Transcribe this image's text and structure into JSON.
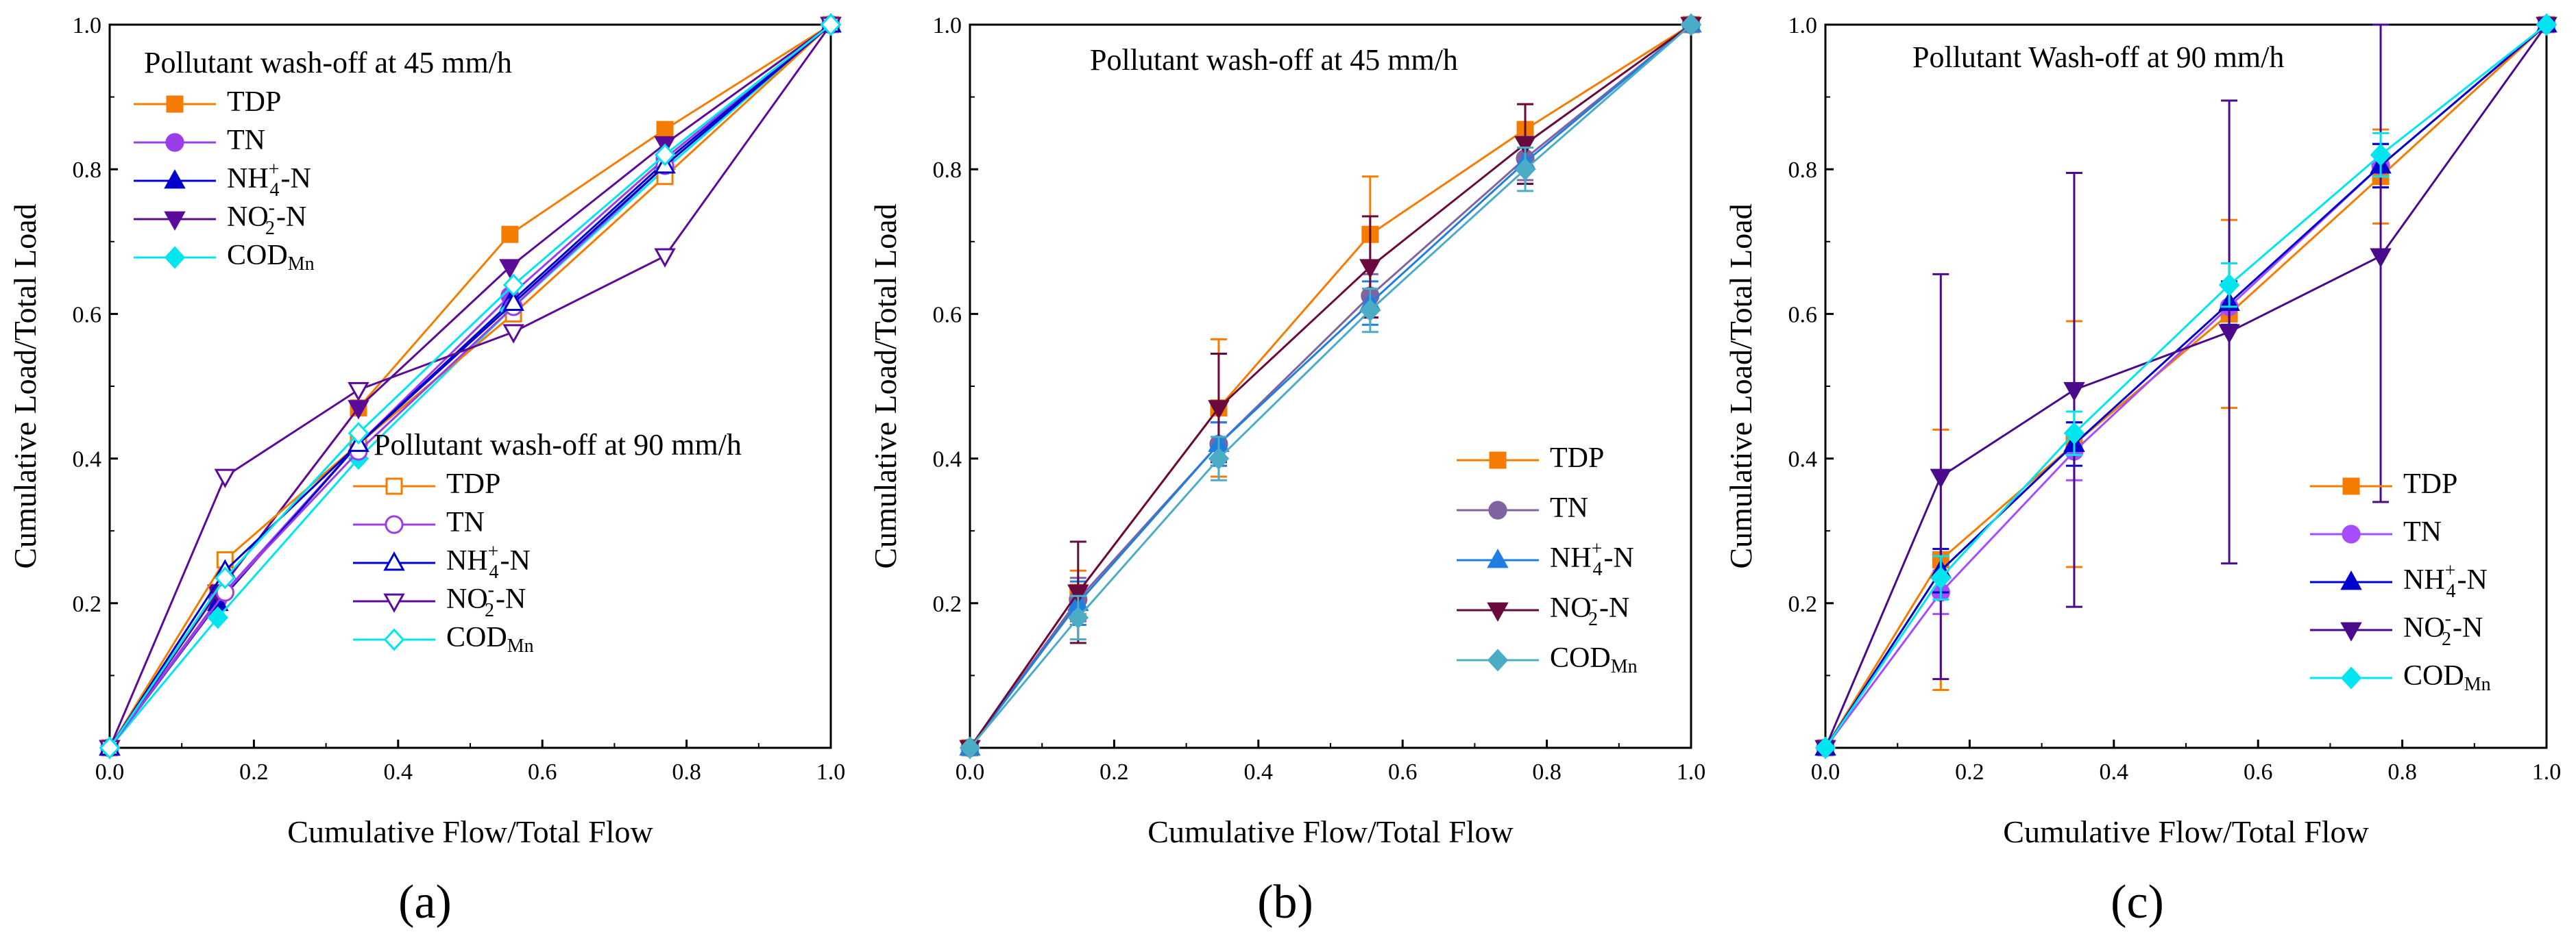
{
  "figure": {
    "panel_labels": [
      "(a)",
      "(b)",
      "(c)"
    ]
  },
  "chart_data": [
    {
      "type": "line",
      "panel": "a",
      "xlabel": "Cumulative Flow/Total Flow",
      "ylabel": "Cumulative Load/Total Load",
      "xlim": [
        0,
        1
      ],
      "ylim": [
        0,
        1
      ],
      "xticks": [
        "0.0",
        "0.2",
        "0.4",
        "0.6",
        "0.8",
        "1.0"
      ],
      "yticks": [
        "0.2",
        "0.4",
        "0.6",
        "0.8",
        "1.0"
      ],
      "legends": [
        {
          "title": "Pollutant wash-off at 45 mm/h",
          "entries": [
            {
              "label": "TDP",
              "sub": "",
              "sup": "",
              "suffix": "",
              "marker": "square",
              "filled": true,
              "color": "#f57c00"
            },
            {
              "label": "TN",
              "sub": "",
              "sup": "",
              "suffix": "",
              "marker": "circle",
              "filled": true,
              "color": "#9b3de8"
            },
            {
              "label": "NH",
              "sub": "4",
              "sup": "+",
              "suffix": "-N",
              "marker": "triangle",
              "filled": true,
              "color": "#0000cc"
            },
            {
              "label": "NO",
              "sub": "2",
              "sup": "-",
              "suffix": "-N",
              "marker": "triangle-down",
              "filled": true,
              "color": "#5c0a99"
            },
            {
              "label": "COD",
              "sub": "Mn",
              "sup": "",
              "suffix": "",
              "marker": "diamond",
              "filled": true,
              "color": "#00e5ee"
            }
          ]
        },
        {
          "title": "Pollutant wash-off at 90 mm/h",
          "entries": [
            {
              "label": "TDP",
              "sub": "",
              "sup": "",
              "suffix": "",
              "marker": "square",
              "filled": false,
              "color": "#f57c00"
            },
            {
              "label": "TN",
              "sub": "",
              "sup": "",
              "suffix": "",
              "marker": "circle",
              "filled": false,
              "color": "#9b3de8"
            },
            {
              "label": "NH",
              "sub": "4",
              "sup": "+",
              "suffix": "-N",
              "marker": "triangle",
              "filled": false,
              "color": "#0000cc"
            },
            {
              "label": "NO",
              "sub": "2",
              "sup": "-",
              "suffix": "-N",
              "marker": "triangle-down",
              "filled": false,
              "color": "#5c0a99"
            },
            {
              "label": "COD",
              "sub": "Mn",
              "sup": "",
              "suffix": "",
              "marker": "diamond",
              "filled": false,
              "color": "#00e5ee"
            }
          ]
        }
      ],
      "series": [
        {
          "name": "TDP 45 mm/h",
          "marker": "square",
          "filled": true,
          "color": "#f57c00",
          "x": [
            0,
            0.15,
            0.345,
            0.555,
            0.77,
            1.0
          ],
          "y": [
            0,
            0.215,
            0.47,
            0.71,
            0.855,
            1.0
          ]
        },
        {
          "name": "TN 45 mm/h",
          "marker": "circle",
          "filled": true,
          "color": "#9b3de8",
          "x": [
            0,
            0.15,
            0.345,
            0.555,
            0.77,
            1.0
          ],
          "y": [
            0,
            0.205,
            0.42,
            0.625,
            0.815,
            1.0
          ]
        },
        {
          "name": "NH4+-N 45 mm/h",
          "marker": "triangle",
          "filled": true,
          "color": "#0000cc",
          "x": [
            0,
            0.15,
            0.345,
            0.555,
            0.77,
            1.0
          ],
          "y": [
            0,
            0.2,
            0.42,
            0.615,
            0.81,
            1.0
          ]
        },
        {
          "name": "NO2--N 45 mm/h",
          "marker": "triangle-down",
          "filled": true,
          "color": "#5c0a99",
          "x": [
            0,
            0.15,
            0.345,
            0.555,
            0.77,
            1.0
          ],
          "y": [
            0,
            0.215,
            0.47,
            0.665,
            0.835,
            1.0
          ]
        },
        {
          "name": "CODMn 45 mm/h",
          "marker": "diamond",
          "filled": true,
          "color": "#00e5ee",
          "x": [
            0,
            0.15,
            0.345,
            0.555,
            0.77,
            1.0
          ],
          "y": [
            0,
            0.18,
            0.4,
            0.605,
            0.8,
            1.0
          ]
        },
        {
          "name": "TDP 90 mm/h",
          "marker": "square",
          "filled": false,
          "color": "#f57c00",
          "x": [
            0,
            0.16,
            0.345,
            0.56,
            0.77,
            1.0
          ],
          "y": [
            0,
            0.26,
            0.42,
            0.6,
            0.79,
            1.0
          ]
        },
        {
          "name": "TN 90 mm/h",
          "marker": "circle",
          "filled": false,
          "color": "#9b3de8",
          "x": [
            0,
            0.16,
            0.345,
            0.56,
            0.77,
            1.0
          ],
          "y": [
            0,
            0.215,
            0.41,
            0.61,
            0.805,
            1.0
          ]
        },
        {
          "name": "NH4+-N 90 mm/h",
          "marker": "triangle",
          "filled": false,
          "color": "#0000cc",
          "x": [
            0,
            0.16,
            0.345,
            0.56,
            0.77,
            1.0
          ],
          "y": [
            0,
            0.245,
            0.42,
            0.615,
            0.805,
            1.0
          ]
        },
        {
          "name": "NO2--N 90 mm/h",
          "marker": "triangle-down",
          "filled": false,
          "color": "#5c0a99",
          "x": [
            0,
            0.16,
            0.345,
            0.56,
            0.77,
            1.0
          ],
          "y": [
            0,
            0.375,
            0.495,
            0.575,
            0.68,
            1.0
          ]
        },
        {
          "name": "CODMn 90 mm/h",
          "marker": "diamond",
          "filled": false,
          "color": "#00e5ee",
          "x": [
            0,
            0.16,
            0.345,
            0.56,
            0.77,
            1.0
          ],
          "y": [
            0,
            0.235,
            0.435,
            0.64,
            0.82,
            1.0
          ]
        }
      ]
    },
    {
      "type": "line",
      "panel": "b",
      "xlabel": "Cumulative Flow/Total Flow",
      "ylabel": "Cumulative Load/Total Load",
      "xlim": [
        0,
        1
      ],
      "ylim": [
        0,
        1
      ],
      "xticks": [
        "0.0",
        "0.2",
        "0.4",
        "0.6",
        "0.8",
        "1.0"
      ],
      "yticks": [
        "0.2",
        "0.4",
        "0.6",
        "0.8",
        "1.0"
      ],
      "legends": [
        {
          "title": "Pollutant wash-off at 45 mm/h",
          "entries": [
            {
              "label": "TDP",
              "sub": "",
              "sup": "",
              "suffix": "",
              "marker": "square",
              "filled": true,
              "color": "#f57c00"
            },
            {
              "label": "TN",
              "sub": "",
              "sup": "",
              "suffix": "",
              "marker": "circle",
              "filled": true,
              "color": "#8064a2"
            },
            {
              "label": "NH",
              "sub": "4",
              "sup": "+",
              "suffix": "-N",
              "marker": "triangle",
              "filled": true,
              "color": "#1e7fe0"
            },
            {
              "label": "NO",
              "sub": "2",
              "sup": "-",
              "suffix": "-N",
              "marker": "triangle-down",
              "filled": true,
              "color": "#6a0a3c"
            },
            {
              "label": "COD",
              "sub": "Mn",
              "sup": "",
              "suffix": "",
              "marker": "diamond",
              "filled": true,
              "color": "#4bacc6"
            }
          ]
        }
      ],
      "series": [
        {
          "name": "TDP",
          "marker": "square",
          "filled": true,
          "color": "#f57c00",
          "x": [
            0,
            0.15,
            0.345,
            0.555,
            0.77,
            1.0
          ],
          "y": [
            0,
            0.215,
            0.47,
            0.71,
            0.855,
            1.0
          ],
          "err": [
            0,
            0.03,
            0.095,
            0.08,
            0.035,
            0
          ]
        },
        {
          "name": "TN",
          "marker": "circle",
          "filled": true,
          "color": "#8064a2",
          "x": [
            0,
            0.15,
            0.345,
            0.555,
            0.77,
            1.0
          ],
          "y": [
            0,
            0.205,
            0.42,
            0.625,
            0.815,
            1.0
          ],
          "err": [
            0,
            0.03,
            0.03,
            0.03,
            0.03,
            0
          ]
        },
        {
          "name": "NH4+-N",
          "marker": "triangle",
          "filled": true,
          "color": "#1e7fe0",
          "x": [
            0,
            0.15,
            0.345,
            0.555,
            0.77,
            1.0
          ],
          "y": [
            0,
            0.2,
            0.42,
            0.615,
            0.81,
            1.0
          ],
          "err": [
            0,
            0.03,
            0.03,
            0.03,
            0.03,
            0
          ]
        },
        {
          "name": "NO2--N",
          "marker": "triangle-down",
          "filled": true,
          "color": "#6a0a3c",
          "x": [
            0,
            0.15,
            0.345,
            0.555,
            0.77,
            1.0
          ],
          "y": [
            0,
            0.215,
            0.47,
            0.665,
            0.835,
            1.0
          ],
          "err": [
            0,
            0.07,
            0.075,
            0.07,
            0.055,
            0
          ]
        },
        {
          "name": "CODMn",
          "marker": "diamond",
          "filled": true,
          "color": "#4bacc6",
          "x": [
            0,
            0.15,
            0.345,
            0.555,
            0.77,
            1.0
          ],
          "y": [
            0,
            0.18,
            0.4,
            0.605,
            0.8,
            1.0
          ],
          "err": [
            0,
            0.03,
            0.03,
            0.03,
            0.03,
            0
          ]
        }
      ]
    },
    {
      "type": "line",
      "panel": "c",
      "xlabel": "Cumulative Flow/Total Flow",
      "ylabel": "Cumulative Load/Total Load",
      "xlim": [
        0,
        1
      ],
      "ylim": [
        0,
        1
      ],
      "xticks": [
        "0.0",
        "0.2",
        "0.4",
        "0.6",
        "0.8",
        "1.0"
      ],
      "yticks": [
        "0.2",
        "0.4",
        "0.6",
        "0.8",
        "1.0"
      ],
      "legends": [
        {
          "title": "Pollutant Wash-off at 90 mm/h",
          "entries": [
            {
              "label": "TDP",
              "sub": "",
              "sup": "",
              "suffix": "",
              "marker": "square",
              "filled": true,
              "color": "#f57c00"
            },
            {
              "label": "TN",
              "sub": "",
              "sup": "",
              "suffix": "",
              "marker": "circle",
              "filled": true,
              "color": "#a64dff"
            },
            {
              "label": "NH",
              "sub": "4",
              "sup": "+",
              "suffix": "-N",
              "marker": "triangle",
              "filled": true,
              "color": "#0000cc"
            },
            {
              "label": "NO",
              "sub": "2",
              "sup": "-",
              "suffix": "-N",
              "marker": "triangle-down",
              "filled": true,
              "color": "#4a0a8c"
            },
            {
              "label": "COD",
              "sub": "Mn",
              "sup": "",
              "suffix": "",
              "marker": "diamond",
              "filled": true,
              "color": "#00e5ee"
            }
          ]
        }
      ],
      "series": [
        {
          "name": "TDP",
          "marker": "square",
          "filled": true,
          "color": "#f57c00",
          "x": [
            0,
            0.16,
            0.345,
            0.56,
            0.77,
            1.0
          ],
          "y": [
            0,
            0.26,
            0.42,
            0.6,
            0.79,
            1.0
          ],
          "err": [
            0,
            0.18,
            0.17,
            0.13,
            0.065,
            0
          ]
        },
        {
          "name": "TN",
          "marker": "circle",
          "filled": true,
          "color": "#a64dff",
          "x": [
            0,
            0.16,
            0.345,
            0.56,
            0.77,
            1.0
          ],
          "y": [
            0,
            0.215,
            0.41,
            0.61,
            0.805,
            1.0
          ],
          "err": [
            0,
            0.03,
            0.04,
            0.03,
            0.03,
            0
          ]
        },
        {
          "name": "NH4+-N",
          "marker": "triangle",
          "filled": true,
          "color": "#0000cc",
          "x": [
            0,
            0.16,
            0.345,
            0.56,
            0.77,
            1.0
          ],
          "y": [
            0,
            0.245,
            0.42,
            0.615,
            0.805,
            1.0
          ],
          "err": [
            0,
            0.03,
            0.03,
            0.03,
            0.03,
            0
          ]
        },
        {
          "name": "NO2--N",
          "marker": "triangle-down",
          "filled": true,
          "color": "#4a0a8c",
          "x": [
            0,
            0.16,
            0.345,
            0.56,
            0.77,
            1.0
          ],
          "y": [
            0,
            0.375,
            0.495,
            0.575,
            0.68,
            1.0
          ],
          "err": [
            0,
            0.28,
            0.3,
            0.32,
            0.34,
            0
          ]
        },
        {
          "name": "CODMn",
          "marker": "diamond",
          "filled": true,
          "color": "#00e5ee",
          "x": [
            0,
            0.16,
            0.345,
            0.56,
            0.77,
            1.0
          ],
          "y": [
            0,
            0.235,
            0.435,
            0.64,
            0.82,
            1.0
          ],
          "err": [
            0,
            0.03,
            0.03,
            0.03,
            0.03,
            0
          ]
        }
      ]
    }
  ]
}
